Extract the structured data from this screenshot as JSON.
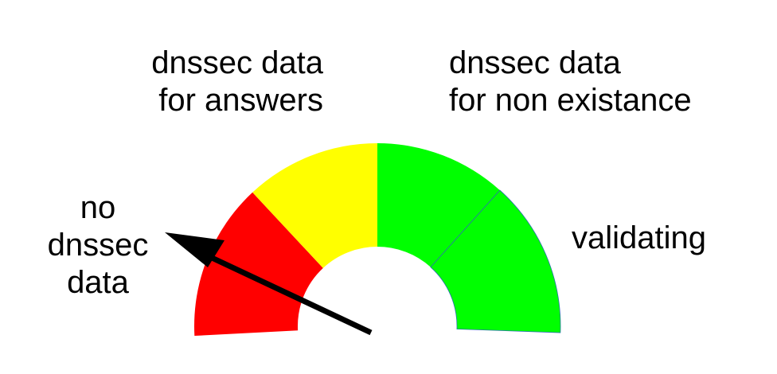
{
  "labels": {
    "answers": [
      "dnssec data",
      "for answers"
    ],
    "non_existence": [
      "dnssec data",
      "for non existance"
    ],
    "none": [
      "no",
      "dnssec",
      "data"
    ],
    "validating": "validating"
  },
  "gauge": {
    "segments": [
      {
        "name": "no dnssec data",
        "color": "#ff0000"
      },
      {
        "name": "dnssec data for answers",
        "color": "#ffff00"
      },
      {
        "name": "dnssec data for non existance",
        "color": "#00ff00"
      },
      {
        "name": "validating",
        "color": "#00ff00"
      }
    ],
    "needle_color": "#000000",
    "needle_position_segment": "no dnssec data"
  }
}
